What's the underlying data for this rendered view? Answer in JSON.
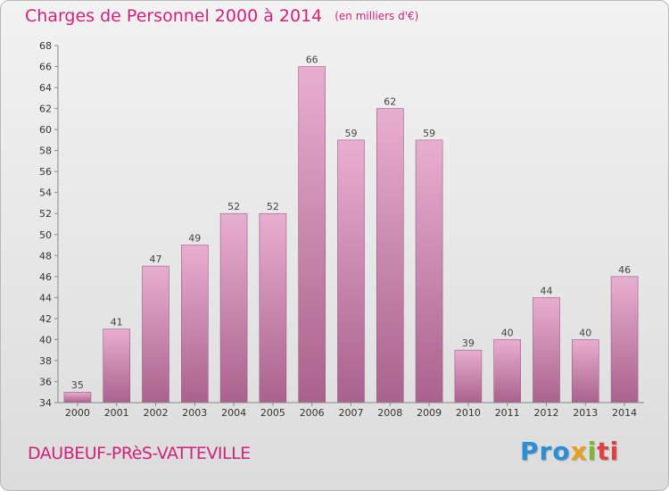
{
  "header": {
    "title": "Charges de Personnel 2000 à 2014",
    "unit": "(en milliers d'€)"
  },
  "footer": {
    "commune": "DAUBEUF-PRèS-VATTEVILLE",
    "logo_parts": [
      "Pro",
      "x",
      "i",
      "ti"
    ]
  },
  "colors": {
    "title": "#d0227a",
    "bar_light": "#e8aed0",
    "bar_dark": "#a9628c"
  },
  "chart_data": {
    "type": "bar",
    "title": "Charges de Personnel 2000 à 2014",
    "subtitle": "(en milliers d'€)",
    "xlabel": "",
    "ylabel": "",
    "categories": [
      "2000",
      "2001",
      "2002",
      "2003",
      "2004",
      "2005",
      "2006",
      "2007",
      "2008",
      "2009",
      "2010",
      "2011",
      "2012",
      "2013",
      "2014"
    ],
    "values": [
      35,
      41,
      47,
      49,
      52,
      52,
      66,
      59,
      62,
      59,
      39,
      40,
      44,
      40,
      46
    ],
    "ylim": [
      34,
      68
    ],
    "yticks": [
      34,
      36,
      38,
      40,
      42,
      44,
      46,
      48,
      50,
      52,
      54,
      56,
      58,
      60,
      62,
      64,
      66,
      68
    ],
    "grid": false,
    "legend": "none"
  }
}
